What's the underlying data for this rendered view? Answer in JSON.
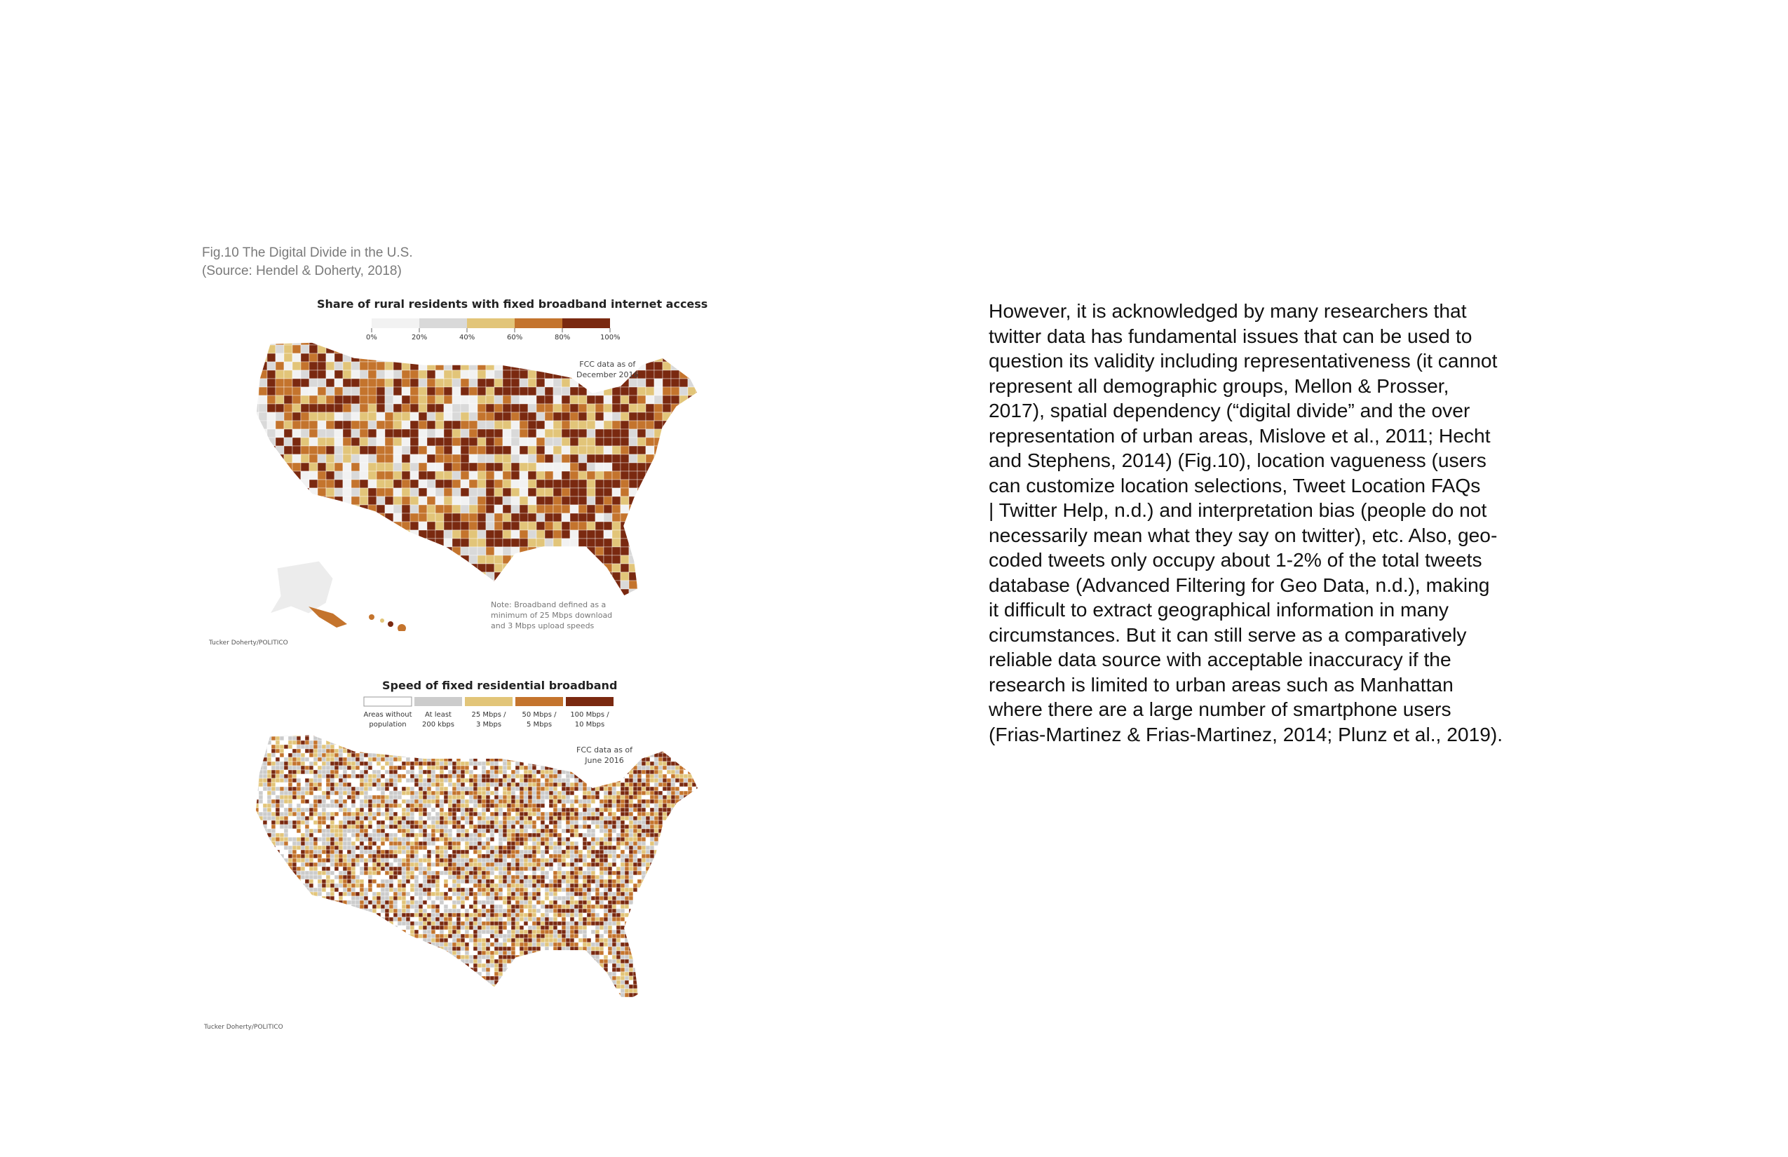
{
  "figure": {
    "caption_line1": "Fig.10 The Digital Divide in the U.S.",
    "caption_line2": "(Source: Hendel & Doherty, 2018)",
    "map1": {
      "title": "Share of rural residents with fixed broadband internet access",
      "legend_ticks": [
        "0%",
        "20%",
        "40%",
        "60%",
        "80%",
        "100%"
      ],
      "legend_colors": [
        "#f2f2f2",
        "#d9d9d9",
        "#e2c579",
        "#c4742d",
        "#7a2910"
      ],
      "data_note_line1": "FCC data as of",
      "data_note_line2": "December 2016",
      "footnote_line1": "Note: Broadband defined as a",
      "footnote_line2": "minimum of 25 Mbps download",
      "footnote_line3": "and 3 Mbps upload speeds",
      "credit": "Tucker Doherty/POLITICO"
    },
    "map2": {
      "title": "Speed of fixed residential broadband",
      "legend": [
        {
          "line1": "Areas without",
          "line2": "population",
          "color": "#ffffff"
        },
        {
          "line1": "At least",
          "line2": "200 kbps",
          "color": "#cccccc"
        },
        {
          "line1": "25 Mbps /",
          "line2": "3 Mbps",
          "color": "#e2c579"
        },
        {
          "line1": "50 Mbps /",
          "line2": "5 Mbps",
          "color": "#c4742d"
        },
        {
          "line1": "100 Mbps /",
          "line2": "10 Mbps",
          "color": "#7a2910"
        }
      ],
      "data_note_line1": "FCC data as of",
      "data_note_line2": "June 2016",
      "credit": "Tucker Doherty/POLITICO"
    }
  },
  "paragraph_lines": [
    "However, it is acknowledged by many researchers that",
    "twitter data has fundamental issues that can be used to",
    "question its validity including representativeness (it cannot",
    "represent all demographic groups, Mellon & Prosser,",
    "2017), spatial dependency (“digital divide” and the over",
    "representation of urban areas, Mislove et al., 2011;  Hecht",
    "and Stephens, 2014) (Fig.10), location vagueness (users",
    "can customize location selections, Tweet Location FAQs",
    "| Twitter Help, n.d.) and interpretation bias (people do not",
    "necessarily mean what they say on twitter), etc. Also, geo-",
    "coded tweets only occupy about 1-2% of the total tweets",
    "database (Advanced Filtering for Geo Data, n.d.), making",
    "it difficult to extract geographical information in many",
    "circumstances. But it can still serve as a comparatively",
    "reliable data source with acceptable inaccuracy if the",
    "research is limited to urban areas such as Manhattan",
    "where there are a large number of smartphone users",
    "(Frias-Martinez & Frias-Martinez, 2014; Plunz et al., 2019)."
  ]
}
